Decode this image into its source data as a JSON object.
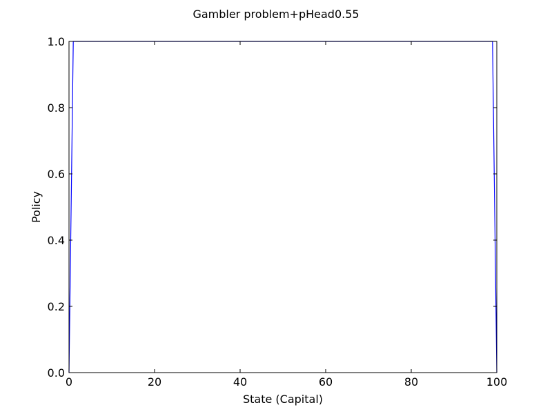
{
  "chart_data": {
    "type": "line",
    "title": "Gambler problem+pHead0.55",
    "xlabel": "State (Capital)",
    "ylabel": "Policy",
    "xlim": [
      0,
      100
    ],
    "ylim": [
      0,
      1
    ],
    "xticks": [
      0,
      20,
      40,
      60,
      80,
      100
    ],
    "xtick_labels": [
      "0",
      "20",
      "40",
      "60",
      "80",
      "100"
    ],
    "yticks": [
      0,
      0.2,
      0.4,
      0.6,
      0.8,
      1.0
    ],
    "ytick_labels": [
      "0.0",
      "0.2",
      "0.4",
      "0.6",
      "0.8",
      "1.0"
    ],
    "grid": false,
    "series": [
      {
        "color": "#0000ff",
        "x": [
          0,
          1,
          2,
          3,
          4,
          5,
          6,
          7,
          8,
          9,
          10,
          11,
          12,
          13,
          14,
          15,
          16,
          17,
          18,
          19,
          20,
          21,
          22,
          23,
          24,
          25,
          26,
          27,
          28,
          29,
          30,
          31,
          32,
          33,
          34,
          35,
          36,
          37,
          38,
          39,
          40,
          41,
          42,
          43,
          44,
          45,
          46,
          47,
          48,
          49,
          50,
          51,
          52,
          53,
          54,
          55,
          56,
          57,
          58,
          59,
          60,
          61,
          62,
          63,
          64,
          65,
          66,
          67,
          68,
          69,
          70,
          71,
          72,
          73,
          74,
          75,
          76,
          77,
          78,
          79,
          80,
          81,
          82,
          83,
          84,
          85,
          86,
          87,
          88,
          89,
          90,
          91,
          92,
          93,
          94,
          95,
          96,
          97,
          98,
          99,
          100
        ],
        "y": [
          0,
          1,
          1,
          1,
          1,
          1,
          1,
          1,
          1,
          1,
          1,
          1,
          1,
          1,
          1,
          1,
          1,
          1,
          1,
          1,
          1,
          1,
          1,
          1,
          1,
          1,
          1,
          1,
          1,
          1,
          1,
          1,
          1,
          1,
          1,
          1,
          1,
          1,
          1,
          1,
          1,
          1,
          1,
          1,
          1,
          1,
          1,
          1,
          1,
          1,
          1,
          1,
          1,
          1,
          1,
          1,
          1,
          1,
          1,
          1,
          1,
          1,
          1,
          1,
          1,
          1,
          1,
          1,
          1,
          1,
          1,
          1,
          1,
          1,
          1,
          1,
          1,
          1,
          1,
          1,
          1,
          1,
          1,
          1,
          1,
          1,
          1,
          1,
          1,
          1,
          1,
          1,
          1,
          1,
          1,
          1,
          1,
          1,
          1,
          1,
          0
        ]
      }
    ]
  }
}
